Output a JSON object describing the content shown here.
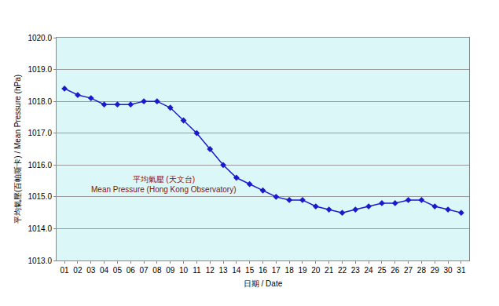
{
  "chart_data": {
    "type": "line",
    "x_label": "日期 / Date",
    "y_label": "平均氣壓(百帕斯卡) / Mean Pressure (hPa)",
    "annotations": [
      "平均氣壓 (天文台)",
      "Mean Pressure (Hong Kong Observatory)"
    ],
    "categories": [
      "01",
      "02",
      "03",
      "04",
      "05",
      "06",
      "07",
      "08",
      "09",
      "10",
      "11",
      "12",
      "13",
      "14",
      "15",
      "16",
      "17",
      "18",
      "19",
      "20",
      "21",
      "22",
      "23",
      "24",
      "25",
      "26",
      "27",
      "28",
      "29",
      "30",
      "31"
    ],
    "values": [
      1018.4,
      1018.2,
      1018.1,
      1017.9,
      1017.9,
      1017.9,
      1018.0,
      1018.0,
      1017.8,
      1017.4,
      1017.0,
      1016.5,
      1016.0,
      1015.6,
      1015.4,
      1015.2,
      1015.0,
      1014.9,
      1014.9,
      1014.7,
      1014.6,
      1014.5,
      1014.6,
      1014.7,
      1014.8,
      1014.8,
      1014.9,
      1014.9,
      1014.7,
      1014.6,
      1014.5
    ],
    "color": "#1a1acc",
    "marker": "diamond",
    "ylim": [
      1013,
      1020
    ],
    "yticks": [
      {
        "value": 1013,
        "label": "1013.0"
      },
      {
        "value": 1014,
        "label": "1014.0"
      },
      {
        "value": 1015,
        "label": "1015.0"
      },
      {
        "value": 1016,
        "label": "1016.0"
      },
      {
        "value": 1017,
        "label": "1017.0"
      },
      {
        "value": 1018,
        "label": "1018.0"
      },
      {
        "value": 1019,
        "label": "1019.0"
      },
      {
        "value": 1020,
        "label": "1020.0"
      }
    ],
    "grid": true
  }
}
